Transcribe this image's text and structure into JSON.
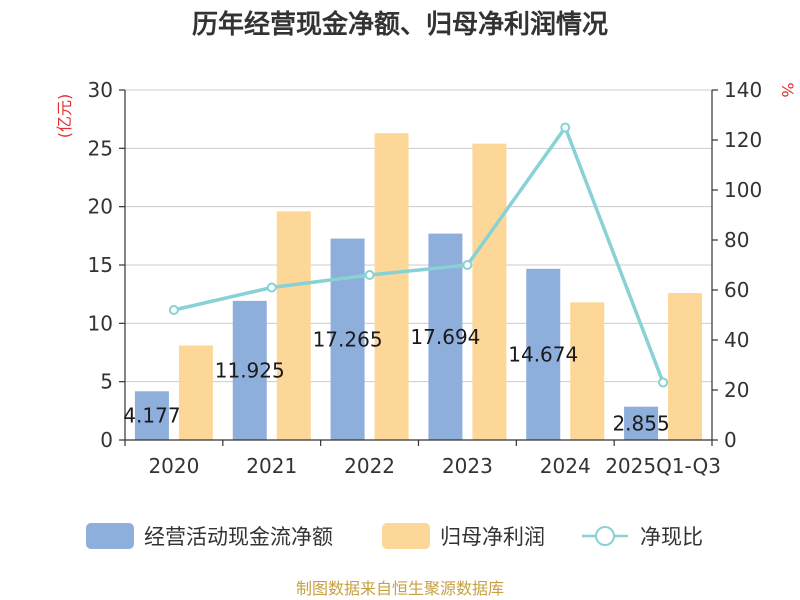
{
  "chart_data": {
    "type": "bar",
    "title": "历年经营现金净额、归母净利润情况",
    "categories": [
      "2020",
      "2021",
      "2022",
      "2023",
      "2024",
      "2025Q1-Q3"
    ],
    "series": [
      {
        "name": "经营活动现金流净额",
        "kind": "bar",
        "axis": "left",
        "color": "#8eaedb",
        "values": [
          4.177,
          11.925,
          17.265,
          17.694,
          14.674,
          2.855
        ],
        "labels": [
          "4.177",
          "11.925",
          "17.265",
          "17.694",
          "14.674",
          "2.855"
        ]
      },
      {
        "name": "归母净利润",
        "kind": "bar",
        "axis": "left",
        "color": "#fdd798",
        "values": [
          8.1,
          19.6,
          26.3,
          25.4,
          11.8,
          12.6
        ]
      },
      {
        "name": "净现比",
        "kind": "line",
        "axis": "right",
        "color": "#88d2d6",
        "values": [
          52,
          61,
          66,
          70,
          125,
          23
        ]
      }
    ],
    "y_left": {
      "label": "(亿元)",
      "min": 0,
      "max": 30,
      "ticks": [
        0,
        5,
        10,
        15,
        20,
        25,
        30
      ]
    },
    "y_right": {
      "label": "%",
      "min": 0,
      "max": 140,
      "ticks": [
        0,
        20,
        40,
        60,
        80,
        100,
        120,
        140
      ]
    },
    "grid": true,
    "legend_position": "bottom"
  },
  "colors": {
    "axis_unit": "#e03030",
    "source": "#c8a040",
    "grid": "#cccccc",
    "axis": "#333333"
  },
  "source_text": "制图数据来自恒生聚源数据库"
}
